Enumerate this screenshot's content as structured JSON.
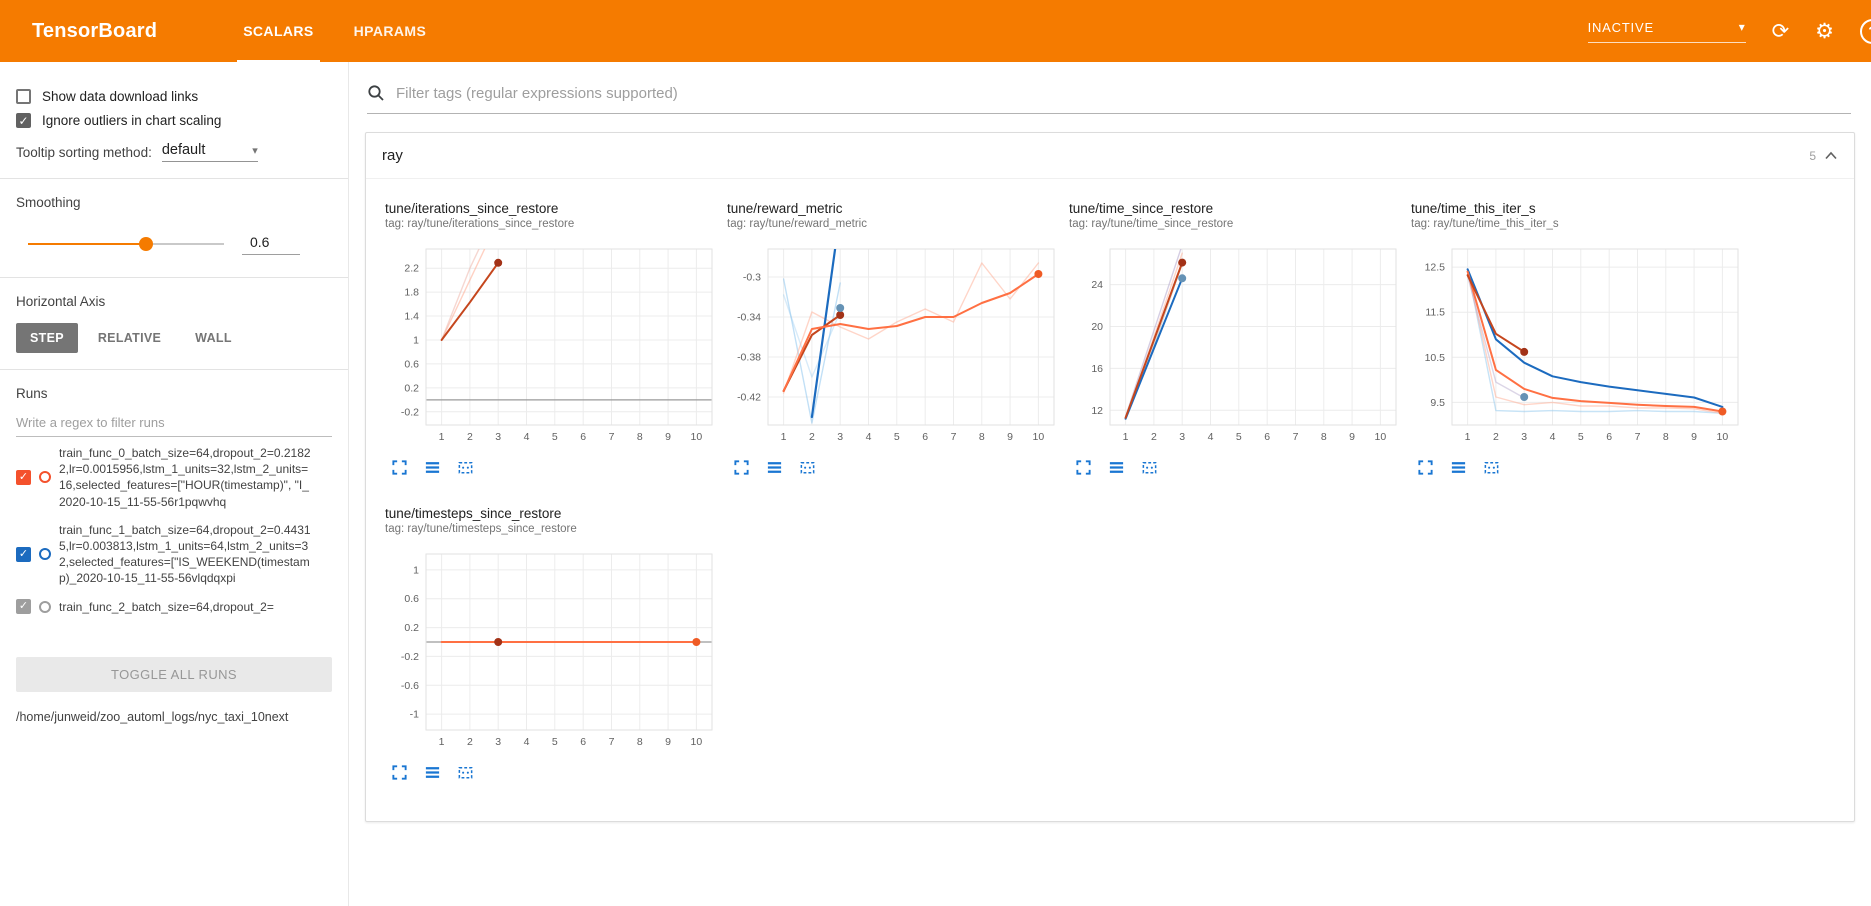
{
  "colors": {
    "header_bg": "#f57b00",
    "accent_blue": "#1976d2"
  },
  "header": {
    "title": "TensorBoard",
    "tabs": [
      {
        "label": "SCALARS",
        "active": true
      },
      {
        "label": "HPARAMS",
        "active": false
      }
    ],
    "status": "INACTIVE",
    "help_glyph": "?"
  },
  "sidebar": {
    "show_links_label": "Show data download links",
    "ignore_outliers_label": "Ignore outliers in chart scaling",
    "tooltip_label": "Tooltip sorting method:",
    "tooltip_value": "default",
    "smoothing_label": "Smoothing",
    "smoothing_value": "0.6",
    "haxis_label": "Horizontal Axis",
    "haxis_options": [
      "STEP",
      "RELATIVE",
      "WALL"
    ],
    "haxis_selected": "STEP",
    "runs_label": "Runs",
    "runs_filter_placeholder": "Write a regex to filter runs",
    "runs": [
      {
        "label": "train_func_0_batch_size=64,dropout_2=0.21822,lr=0.0015956,lstm_1_units=32,lstm_2_units=16,selected_features=[\"HOUR(timestamp)\", \"I_2020-10-15_11-55-56r1pqwvhq",
        "color": "#f4512c",
        "checked": true
      },
      {
        "label": "train_func_1_batch_size=64,dropout_2=0.44315,lr=0.003813,lstm_1_units=64,lstm_2_units=32,selected_features=[\"IS_WEEKEND(timestamp)_2020-10-15_11-55-56vlqdqxpi",
        "color": "#1c6bbf",
        "checked": true
      },
      {
        "label": "train_func_2_batch_size=64,dropout_2=",
        "color": "#9e9e9e",
        "checked": true
      }
    ],
    "toggle_all_label": "TOGGLE ALL RUNS",
    "log_path": "/home/junweid/zoo_automl_logs/nyc_taxi_10next"
  },
  "main": {
    "filter_placeholder": "Filter tags (regular expressions supported)",
    "group_title": "ray",
    "group_count": "5"
  },
  "chart_data": [
    {
      "type": "line",
      "title": "tune/iterations_since_restore",
      "tag": "tag: ray/tune/iterations_since_restore",
      "x_ticks": [
        1,
        2,
        3,
        4,
        5,
        6,
        7,
        8,
        9,
        10
      ],
      "xlim": [
        0.45,
        10.55
      ],
      "y_ticks": [
        -0.2,
        0.2,
        0.6,
        1,
        1.4,
        1.8,
        2.2
      ],
      "ylim": [
        -0.42,
        2.52
      ],
      "zero_line": true,
      "series": [
        {
          "name": "run0-raw",
          "color": "#ffab91",
          "opacity": 0.55,
          "width": 1.4,
          "points": [
            [
              1,
              1
            ],
            [
              2,
              2
            ],
            [
              3,
              3
            ]
          ]
        },
        {
          "name": "run0-raw-b",
          "color": "#eeb0a3",
          "opacity": 0.5,
          "width": 1.4,
          "points": [
            [
              1,
              1
            ],
            [
              2,
              2.2
            ],
            [
              3,
              3.2
            ]
          ]
        },
        {
          "name": "run0-smoothed",
          "color": "#c5461d",
          "width": 2,
          "dot": true,
          "dot_color": "#a23217",
          "points": [
            [
              1,
              1
            ],
            [
              2,
              1.63
            ],
            [
              3,
              2.29
            ]
          ]
        }
      ]
    },
    {
      "type": "line",
      "title": "tune/reward_metric",
      "tag": "tag: ray/tune/reward_metric",
      "x_ticks": [
        1,
        2,
        3,
        4,
        5,
        6,
        7,
        8,
        9,
        10
      ],
      "xlim": [
        0.45,
        10.55
      ],
      "y_ticks": [
        -0.42,
        -0.38,
        -0.34,
        -0.3
      ],
      "ylim": [
        -0.448,
        -0.272
      ],
      "zero_line": false,
      "series": [
        {
          "name": "run1-raw",
          "color": "#8fc7ee",
          "opacity": 0.55,
          "width": 1.4,
          "points": [
            [
              1,
              -0.302
            ],
            [
              2,
              -0.446
            ],
            [
              3,
              -0.306
            ]
          ]
        },
        {
          "name": "run1-raw-b",
          "color": "#8fc7ee",
          "opacity": 0.35,
          "width": 1.4,
          "points": [
            [
              1,
              -0.318
            ],
            [
              2,
              -0.4
            ],
            [
              3,
              -0.335
            ]
          ]
        },
        {
          "name": "run2-raw",
          "color": "#ffab91",
          "opacity": 0.5,
          "width": 1.4,
          "points": [
            [
              1,
              -0.416
            ],
            [
              2,
              -0.335
            ],
            [
              3,
              -0.35
            ],
            [
              4,
              -0.362
            ],
            [
              5,
              -0.345
            ],
            [
              6,
              -0.332
            ],
            [
              7,
              -0.345
            ],
            [
              8,
              -0.286
            ],
            [
              9,
              -0.322
            ],
            [
              10,
              -0.286
            ]
          ]
        },
        {
          "name": "run1-smoothed",
          "color": "#1c6bbf",
          "width": 2.2,
          "points": [
            [
              2,
              -0.44
            ],
            [
              3,
              -0.235
            ]
          ]
        },
        {
          "name": "run0-smoothed",
          "color": "#c5461d",
          "width": 2,
          "dot": true,
          "dot_color": "#a23217",
          "points": [
            [
              1,
              -0.414
            ],
            [
              2,
              -0.358
            ],
            [
              3,
              -0.338
            ]
          ]
        },
        {
          "name": "run2-smoothed",
          "color": "#ff7043",
          "width": 2,
          "dot": true,
          "dot_color": "#ef5b25",
          "points": [
            [
              1,
              -0.414
            ],
            [
              2,
              -0.352
            ],
            [
              3,
              -0.347
            ],
            [
              4,
              -0.352
            ],
            [
              5,
              -0.349
            ],
            [
              6,
              -0.34
            ],
            [
              7,
              -0.34
            ],
            [
              8,
              -0.326
            ],
            [
              9,
              -0.316
            ],
            [
              10,
              -0.297
            ]
          ]
        },
        {
          "name": "run1-endpoint",
          "color": "#6592b5",
          "dot": true,
          "points": [
            [
              3,
              -0.331
            ]
          ]
        }
      ]
    },
    {
      "type": "line",
      "title": "tune/time_since_restore",
      "tag": "tag: ray/tune/time_since_restore",
      "x_ticks": [
        1,
        2,
        3,
        4,
        5,
        6,
        7,
        8,
        9,
        10
      ],
      "xlim": [
        0.45,
        10.55
      ],
      "y_ticks": [
        12,
        16,
        20,
        24
      ],
      "ylim": [
        10.6,
        27.4
      ],
      "zero_line": false,
      "series": [
        {
          "name": "raw-gray",
          "color": "#bbbbbb",
          "opacity": 0.6,
          "width": 1.4,
          "points": [
            [
              1,
              11.2
            ],
            [
              2,
              18.2
            ],
            [
              3,
              26
            ]
          ]
        },
        {
          "name": "raw-lavender",
          "color": "#b9aed0",
          "opacity": 0.6,
          "width": 1.4,
          "points": [
            [
              1,
              11.4
            ],
            [
              2,
              19.6
            ],
            [
              3,
              27.8
            ]
          ]
        },
        {
          "name": "raw-orange",
          "color": "#ffab91",
          "opacity": 0.5,
          "width": 1.4,
          "points": [
            [
              1,
              11.3
            ],
            [
              2,
              19
            ],
            [
              3,
              27
            ]
          ]
        },
        {
          "name": "run1-smoothed",
          "color": "#1c6bbf",
          "width": 2,
          "dot": true,
          "dot_color": "#6592b5",
          "points": [
            [
              1,
              11.2
            ],
            [
              2,
              17.9
            ],
            [
              3,
              24.6
            ]
          ]
        },
        {
          "name": "run0-smoothed",
          "color": "#c5461d",
          "width": 2,
          "dot": true,
          "dot_color": "#a23217",
          "points": [
            [
              1,
              11.3
            ],
            [
              2,
              18.7
            ],
            [
              3,
              26.1
            ]
          ]
        }
      ]
    },
    {
      "type": "line",
      "title": "tune/time_this_iter_s",
      "tag": "tag: ray/tune/time_this_iter_s",
      "x_ticks": [
        1,
        2,
        3,
        4,
        5,
        6,
        7,
        8,
        9,
        10
      ],
      "xlim": [
        0.45,
        10.55
      ],
      "y_ticks": [
        9.5,
        10.5,
        11.5,
        12.5
      ],
      "ylim": [
        9.0,
        12.9
      ],
      "zero_line": false,
      "series": [
        {
          "name": "raw-blue",
          "color": "#8fc7ee",
          "opacity": 0.5,
          "width": 1.4,
          "points": [
            [
              1,
              12.45
            ],
            [
              2,
              9.32
            ],
            [
              3,
              9.3
            ],
            [
              4,
              9.32
            ],
            [
              5,
              9.3
            ],
            [
              6,
              9.3
            ],
            [
              7,
              9.32
            ],
            [
              8,
              9.3
            ],
            [
              9,
              9.3
            ],
            [
              10,
              9.26
            ]
          ]
        },
        {
          "name": "raw-orange",
          "color": "#ffab91",
          "opacity": 0.5,
          "width": 1.4,
          "points": [
            [
              1,
              12.4
            ],
            [
              2,
              9.62
            ],
            [
              3,
              9.45
            ],
            [
              4,
              9.5
            ],
            [
              5,
              9.42
            ],
            [
              6,
              9.42
            ],
            [
              7,
              9.38
            ],
            [
              8,
              9.38
            ],
            [
              9,
              9.36
            ],
            [
              10,
              9.26
            ]
          ]
        },
        {
          "name": "raw-lavender",
          "color": "#b9aed0",
          "opacity": 0.5,
          "width": 1.4,
          "points": [
            [
              1,
              12.3
            ],
            [
              2,
              9.95
            ],
            [
              3,
              9.6
            ]
          ]
        },
        {
          "name": "run1-smoothed",
          "color": "#1c6bbf",
          "width": 2,
          "points": [
            [
              1,
              12.45
            ],
            [
              2,
              10.9
            ],
            [
              3,
              10.38
            ],
            [
              4,
              10.08
            ],
            [
              5,
              9.95
            ],
            [
              6,
              9.85
            ],
            [
              7,
              9.77
            ],
            [
              8,
              9.69
            ],
            [
              9,
              9.61
            ],
            [
              10,
              9.4
            ]
          ]
        },
        {
          "name": "run2-smoothed",
          "color": "#ff7043",
          "width": 2,
          "dot": true,
          "dot_color": "#ef5b25",
          "points": [
            [
              1,
              12.4
            ],
            [
              2,
              10.22
            ],
            [
              3,
              9.8
            ],
            [
              4,
              9.6
            ],
            [
              5,
              9.53
            ],
            [
              6,
              9.49
            ],
            [
              7,
              9.45
            ],
            [
              8,
              9.42
            ],
            [
              9,
              9.4
            ],
            [
              10,
              9.3
            ]
          ]
        },
        {
          "name": "run0-smoothed",
          "color": "#c5461d",
          "width": 2,
          "dot": true,
          "dot_color": "#a23217",
          "points": [
            [
              1,
              12.32
            ],
            [
              2,
              11.02
            ],
            [
              3,
              10.62
            ]
          ]
        },
        {
          "name": "run1-endpoint",
          "color": "#6592b5",
          "dot": true,
          "points": [
            [
              3,
              9.62
            ]
          ]
        }
      ]
    },
    {
      "type": "line",
      "title": "tune/timesteps_since_restore",
      "tag": "tag: ray/tune/timesteps_since_restore",
      "x_ticks": [
        1,
        2,
        3,
        4,
        5,
        6,
        7,
        8,
        9,
        10
      ],
      "xlim": [
        0.45,
        10.55
      ],
      "y_ticks": [
        -1,
        -0.6,
        -0.2,
        0.2,
        0.6,
        1
      ],
      "ylim": [
        -1.22,
        1.22
      ],
      "zero_line": true,
      "series": [
        {
          "name": "run2-smoothed",
          "color": "#ff7043",
          "width": 2,
          "dot": true,
          "dot_color": "#ef5b25",
          "points": [
            [
              1,
              0
            ],
            [
              2,
              0
            ],
            [
              3,
              0
            ],
            [
              4,
              0
            ],
            [
              5,
              0
            ],
            [
              6,
              0
            ],
            [
              7,
              0
            ],
            [
              8,
              0
            ],
            [
              9,
              0
            ],
            [
              10,
              0
            ]
          ]
        },
        {
          "name": "run0-endpoint",
          "color": "#a23217",
          "dot": true,
          "points": [
            [
              3,
              0
            ]
          ]
        }
      ]
    }
  ]
}
